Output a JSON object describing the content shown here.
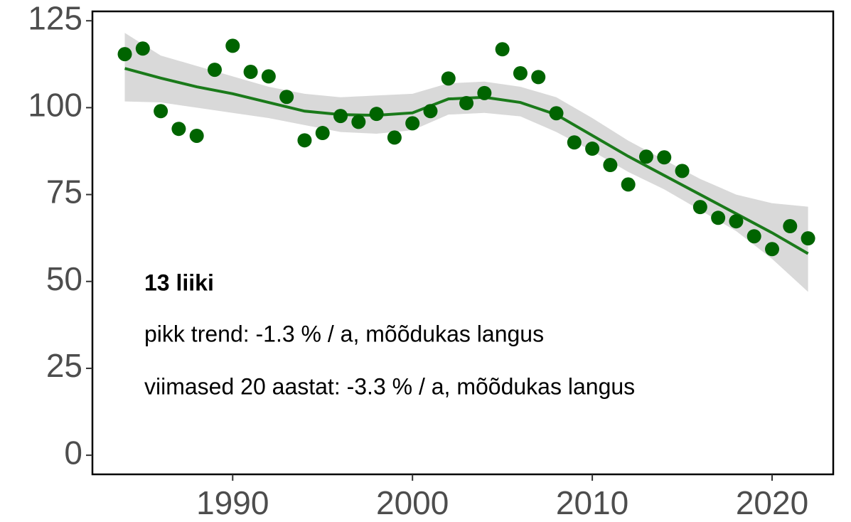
{
  "chart_data": {
    "type": "scatter",
    "annotations": [
      "13 liiki",
      "pikk trend: -1.3 % / a, mõõdukas langus",
      "viimased 20 aastat: -3.3 % / a, mõõdukas langus"
    ],
    "x": [
      1984,
      1985,
      1986,
      1987,
      1988,
      1989,
      1990,
      1991,
      1992,
      1993,
      1994,
      1995,
      1996,
      1997,
      1998,
      1999,
      2000,
      2001,
      2002,
      2003,
      2004,
      2005,
      2006,
      2007,
      2008,
      2009,
      2010,
      2011,
      2012,
      2013,
      2014,
      2015,
      2016,
      2017,
      2018,
      2019,
      2020,
      2021,
      2022
    ],
    "series": [
      {
        "color": "#006400",
        "values": [
          115.4,
          117,
          99,
          93.9,
          91.9,
          110.9,
          117.8,
          110.3,
          109,
          103.1,
          90.6,
          92.7,
          97.6,
          95.9,
          98.2,
          91.4,
          95.5,
          99,
          108.4,
          101.3,
          104.2,
          116.8,
          109.9,
          108.8,
          98.4,
          90,
          88.2,
          83.5,
          77.9,
          85.9,
          85.7,
          81.8,
          71.4,
          68.3,
          67.3,
          63,
          59.3,
          65.9,
          62.4
        ]
      }
    ],
    "trend": {
      "color": "#1a7a1a",
      "band_color": "#d9d9d9",
      "x": [
        1984,
        1986,
        1988,
        1990,
        1992,
        1994,
        1996,
        1998,
        2000,
        2002,
        2004,
        2006,
        2008,
        2010,
        2012,
        2014,
        2016,
        2018,
        2020,
        2022
      ],
      "values": [
        111.3,
        108.5,
        106,
        104,
        101.5,
        99,
        98,
        97.8,
        98.5,
        102.5,
        103,
        101.5,
        98,
        92,
        86,
        80.5,
        75,
        69.5,
        64,
        58
      ],
      "lower": [
        101.8,
        101.5,
        100,
        98.5,
        97,
        95,
        93,
        92.5,
        93.5,
        98,
        98.5,
        97.5,
        93,
        87.5,
        81.5,
        76.5,
        70.5,
        64.5,
        56.5,
        47
      ],
      "upper": [
        121.5,
        115,
        112,
        109,
        106,
        104,
        103,
        103.5,
        104,
        107,
        107.5,
        106,
        103,
        97,
        90.5,
        85,
        79.5,
        75,
        72.5,
        71.5
      ]
    },
    "xlim": [
      1982.2,
      2023.4
    ],
    "ylim": [
      -5.5,
      127.7
    ],
    "xticks": [
      1990,
      2000,
      2010,
      2020
    ],
    "yticks": [
      0,
      25,
      50,
      75,
      100,
      125
    ]
  }
}
